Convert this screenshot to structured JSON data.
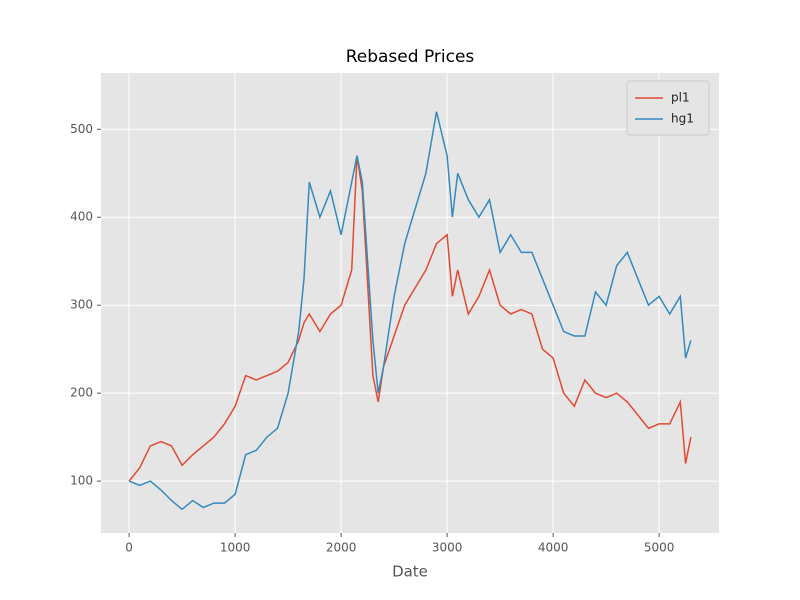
{
  "chart_data": {
    "type": "line",
    "title": "Rebased Prices",
    "x_label": "Date",
    "x": [
      0,
      100,
      200,
      300,
      400,
      500,
      600,
      700,
      800,
      900,
      1000,
      1100,
      1200,
      1300,
      1400,
      1500,
      1600,
      1650,
      1700,
      1800,
      1900,
      2000,
      2100,
      2150,
      2200,
      2300,
      2350,
      2400,
      2500,
      2600,
      2700,
      2800,
      2900,
      3000,
      3050,
      3100,
      3200,
      3300,
      3400,
      3500,
      3600,
      3700,
      3800,
      3900,
      4000,
      4100,
      4200,
      4300,
      4400,
      4500,
      4600,
      4700,
      4800,
      4900,
      5000,
      5100,
      5200,
      5250,
      5300
    ],
    "series": [
      {
        "name": "pl1",
        "color": "#E24A33",
        "values": [
          100,
          115,
          140,
          145,
          140,
          118,
          130,
          140,
          150,
          165,
          185,
          220,
          215,
          220,
          225,
          235,
          260,
          280,
          290,
          270,
          290,
          300,
          340,
          470,
          430,
          220,
          190,
          230,
          265,
          300,
          320,
          340,
          370,
          380,
          310,
          340,
          290,
          310,
          340,
          300,
          290,
          295,
          290,
          250,
          240,
          200,
          185,
          215,
          200,
          195,
          200,
          190,
          175,
          160,
          165,
          165,
          190,
          120,
          150
        ]
      },
      {
        "name": "hg1",
        "color": "#348ABD",
        "values": [
          100,
          95,
          100,
          90,
          78,
          68,
          78,
          70,
          75,
          75,
          85,
          130,
          135,
          150,
          160,
          200,
          270,
          330,
          440,
          400,
          430,
          380,
          440,
          470,
          440,
          260,
          200,
          230,
          310,
          370,
          410,
          450,
          520,
          470,
          400,
          450,
          420,
          400,
          420,
          360,
          380,
          360,
          360,
          330,
          300,
          270,
          265,
          265,
          315,
          300,
          345,
          360,
          330,
          300,
          310,
          290,
          310,
          240,
          260
        ]
      }
    ],
    "xlim": [
      -265,
      5565
    ],
    "ylim": [
      41,
      564
    ],
    "xticks": [
      0,
      1000,
      2000,
      3000,
      4000,
      5000
    ],
    "yticks": [
      100,
      200,
      300,
      400,
      500
    ],
    "grid": true,
    "legend": "upper-right"
  }
}
